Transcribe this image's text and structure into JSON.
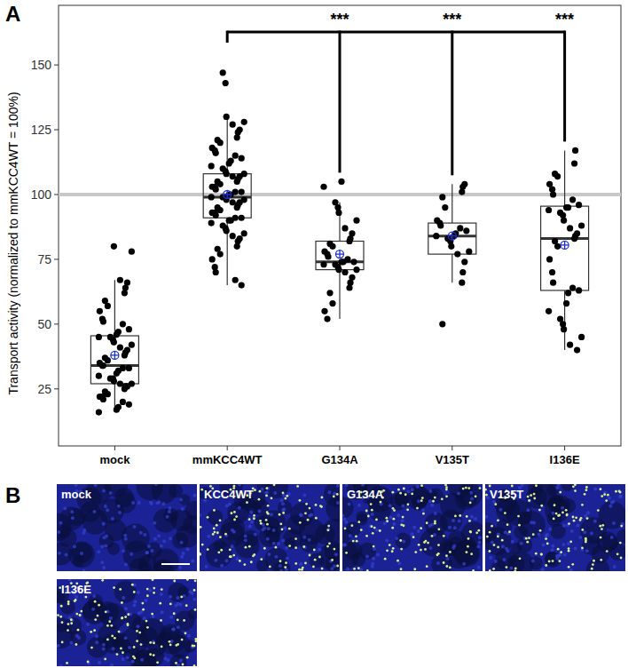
{
  "chart_data": {
    "type": "box",
    "panel": "A",
    "y_label": "Transport activity (normalized to mmKCC4WT = 100%)",
    "categories": [
      "mock",
      "mmKCC4WT",
      "G134A",
      "V135T",
      "I136E"
    ],
    "ylim": [
      3,
      173
    ],
    "yticks": [
      25,
      50,
      75,
      100,
      125,
      150
    ],
    "reference_line": 100,
    "boxes": [
      {
        "min": 16,
        "q1": 27,
        "median": 34,
        "q3": 45.5,
        "max": 67,
        "mean": 38,
        "points": [
          16,
          17,
          18,
          19,
          20,
          21,
          22,
          22,
          23,
          24,
          25,
          26,
          26,
          27,
          27,
          28,
          29,
          29,
          30,
          31,
          32,
          33,
          33,
          34,
          34,
          35,
          36,
          37,
          38,
          39,
          40,
          41,
          42,
          43,
          44,
          45,
          45,
          46,
          47,
          48,
          50,
          51,
          52,
          55,
          57,
          59,
          62,
          64,
          66,
          67,
          78,
          80
        ]
      },
      {
        "min": 65,
        "q1": 91,
        "median": 99,
        "q3": 108,
        "max": 130,
        "mean": 100,
        "points": [
          65,
          67,
          70,
          72,
          75,
          77,
          79,
          80,
          82,
          83,
          84,
          85,
          86,
          87,
          88,
          89,
          90,
          90,
          91,
          91,
          92,
          93,
          93,
          94,
          95,
          95,
          96,
          97,
          97,
          98,
          98,
          99,
          99,
          99,
          100,
          100,
          101,
          101,
          102,
          103,
          103,
          104,
          105,
          105,
          106,
          107,
          107,
          108,
          108,
          109,
          110,
          111,
          112,
          113,
          114,
          115,
          116,
          117,
          118,
          120,
          121,
          122,
          124,
          125,
          127,
          128,
          130,
          143,
          147
        ]
      },
      {
        "min": 52,
        "q1": 71,
        "median": 74,
        "q3": 82,
        "max": 97,
        "mean": 77,
        "points": [
          52,
          55,
          58,
          62,
          64,
          66,
          68,
          70,
          71,
          71,
          72,
          73,
          73,
          74,
          74,
          74,
          75,
          76,
          77,
          78,
          80,
          81,
          82,
          83,
          85,
          87,
          90,
          93,
          95,
          97,
          103,
          105
        ]
      },
      {
        "min": 66,
        "q1": 77,
        "median": 84,
        "q3": 89,
        "max": 104,
        "mean": 84,
        "points": [
          50,
          66,
          70,
          74,
          77,
          78,
          80,
          82,
          83,
          84,
          84,
          85,
          86,
          87,
          88,
          89,
          90,
          95,
          99,
          101,
          103,
          104
        ]
      },
      {
        "min": 40,
        "q1": 63,
        "median": 83,
        "q3": 95.5,
        "max": 117,
        "mean": 80.5,
        "points": [
          40,
          42,
          45,
          48,
          50,
          52,
          55,
          58,
          62,
          63,
          64,
          66,
          70,
          75,
          80,
          82,
          83,
          84,
          85,
          87,
          88,
          90,
          92,
          93,
          94,
          95,
          95,
          96,
          98,
          100,
          102,
          104,
          107,
          108,
          112,
          117
        ]
      }
    ],
    "comparisons": [
      {
        "from": "mmKCC4WT",
        "to": "G134A",
        "label": "***"
      },
      {
        "from": "mmKCC4WT",
        "to": "V135T",
        "label": "***"
      },
      {
        "from": "mmKCC4WT",
        "to": "I136E",
        "label": "***"
      }
    ]
  },
  "panel_b": {
    "letter": "B",
    "images": [
      {
        "label": "mock",
        "signal": false
      },
      {
        "label": "KCC4WT",
        "signal": true
      },
      {
        "label": "G134A",
        "signal": true
      },
      {
        "label": "V135T",
        "signal": true
      },
      {
        "label": "I136E",
        "signal": true
      }
    ]
  }
}
